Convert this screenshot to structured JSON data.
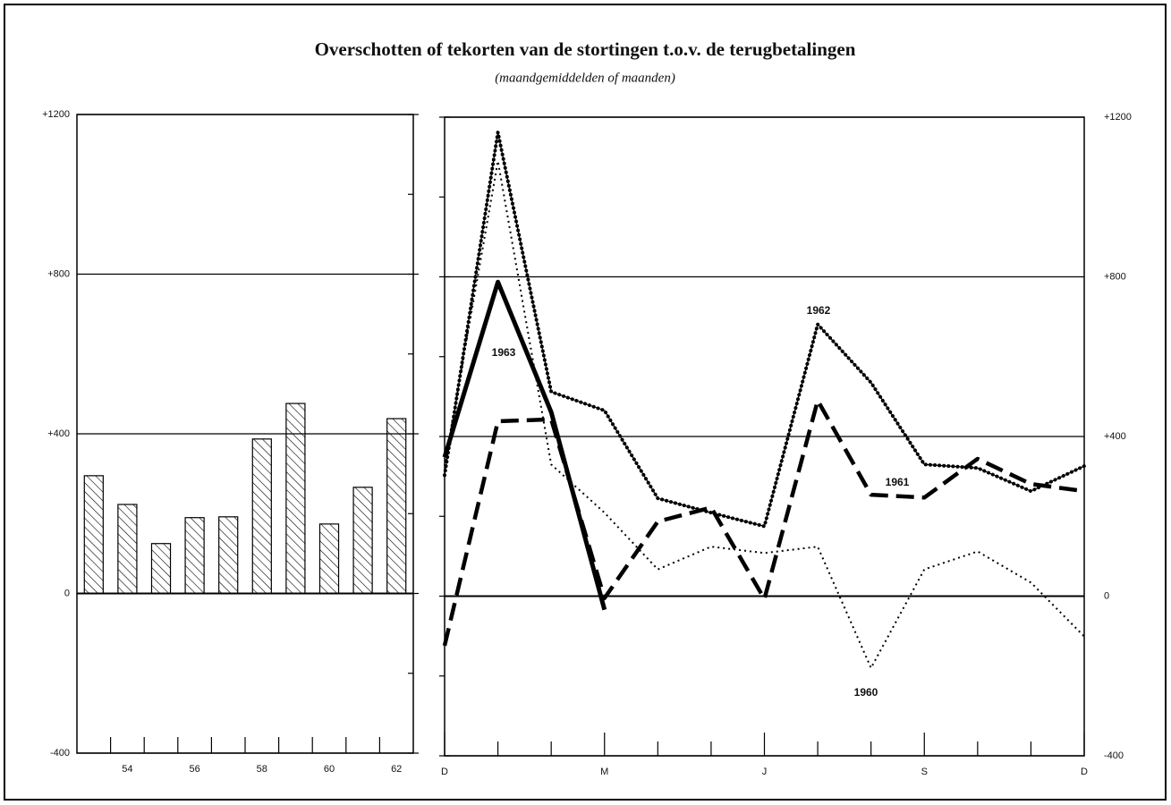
{
  "chart_data": [
    {
      "type": "bar",
      "title": "Overschotten of tekorten van de stortingen t.o.v. de terugbetalingen",
      "subtitle": "(maandgemiddelden of maanden)",
      "categories": [
        null,
        "54",
        null,
        "56",
        null,
        "58",
        null,
        "60",
        null,
        "62"
      ],
      "values": [
        295,
        223,
        125,
        190,
        192,
        387,
        476,
        174,
        266,
        438
      ],
      "color": "#000000",
      "ylim": [
        -400,
        1200
      ],
      "yticks": [
        -400,
        0,
        {
          "value": 400,
          "label": "+400"
        },
        {
          "value": 800,
          "label": "+800"
        },
        {
          "value": 1200,
          "label": "+1200"
        }
      ],
      "grid": true
    },
    {
      "type": "line",
      "categories": [
        "D",
        null,
        null,
        "M",
        null,
        null,
        "J",
        null,
        null,
        "S",
        null,
        null,
        "D"
      ],
      "ylim": [
        -400,
        1200
      ],
      "yticks": [
        -400,
        0,
        {
          "value": 400,
          "label": "+400"
        },
        {
          "value": 800,
          "label": "+800"
        },
        {
          "value": 1200,
          "label": "+1200"
        }
      ],
      "grid": true,
      "series": [
        {
          "name": "1960",
          "color": "#000000",
          "dash": "dotted",
          "values": [
            326,
            1090,
            330,
            209,
            67,
            124,
            108,
            124,
            -180,
            67,
            112,
            34,
            -101
          ]
        },
        {
          "name": "1961",
          "color": "#000000",
          "dash": "dashed",
          "values": [
            -124,
            438,
            443,
            -5,
            187,
            222,
            -7,
            490,
            254,
            247,
            344,
            281,
            263
          ]
        },
        {
          "name": "1962",
          "color": "#000000",
          "dash": "beaded",
          "values": [
            303,
            1162,
            512,
            465,
            245,
            209,
            175,
            681,
            535,
            330,
            321,
            263,
            326
          ]
        },
        {
          "name": "1963",
          "color": "#000000",
          "dash": "solid",
          "values": [
            348,
            787,
            461,
            -34,
            null,
            null,
            null,
            null,
            null,
            null,
            null,
            null,
            null
          ]
        }
      ]
    }
  ]
}
